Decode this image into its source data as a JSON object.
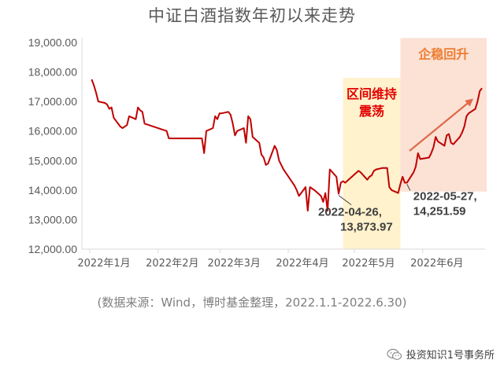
{
  "chart_data": {
    "type": "line",
    "title": "中证白酒指数年初以来走势",
    "ylim": [
      12000,
      19000
    ],
    "yticks": [
      "19,000.00",
      "18,000.00",
      "17,000.00",
      "16,000.00",
      "15,000.00",
      "14,000.00",
      "13,000.00",
      "12,000.00"
    ],
    "ytick_values": [
      19000,
      18000,
      17000,
      16000,
      15000,
      14000,
      13000,
      12000
    ],
    "xlim": [
      "2022-01-01",
      "2022-06-30"
    ],
    "xticks": [
      {
        "label": "2022年1月",
        "date": "2022-01-01"
      },
      {
        "label": "2022年2月",
        "date": "2022-02-01"
      },
      {
        "label": "2022年3月",
        "date": "2022-03-01"
      },
      {
        "label": "2022年4月",
        "date": "2022-04-01"
      },
      {
        "label": "2022年5月",
        "date": "2022-05-01"
      },
      {
        "label": "2022年6月",
        "date": "2022-06-01"
      }
    ],
    "grid": false,
    "line_color": "#C00000",
    "series": [
      {
        "points": [
          [
            "2022-01-04",
            17750
          ],
          [
            "2022-01-05",
            17550
          ],
          [
            "2022-01-06",
            17300
          ],
          [
            "2022-01-07",
            17000
          ],
          [
            "2022-01-10",
            16950
          ],
          [
            "2022-01-11",
            16900
          ],
          [
            "2022-01-12",
            16750
          ],
          [
            "2022-01-13",
            16800
          ],
          [
            "2022-01-14",
            16450
          ],
          [
            "2022-01-17",
            16150
          ],
          [
            "2022-01-18",
            16100
          ],
          [
            "2022-01-19",
            16150
          ],
          [
            "2022-01-20",
            16200
          ],
          [
            "2022-01-21",
            16500
          ],
          [
            "2022-01-24",
            16400
          ],
          [
            "2022-01-25",
            16800
          ],
          [
            "2022-01-26",
            16700
          ],
          [
            "2022-01-27",
            16650
          ],
          [
            "2022-01-28",
            16250
          ],
          [
            "2022-02-07",
            16000
          ],
          [
            "2022-02-08",
            15750
          ],
          [
            "2022-02-09",
            15750
          ],
          [
            "2022-02-10",
            15750
          ],
          [
            "2022-02-11",
            15750
          ],
          [
            "2022-02-14",
            15750
          ],
          [
            "2022-02-15",
            15750
          ],
          [
            "2022-02-16",
            15750
          ],
          [
            "2022-02-17",
            15750
          ],
          [
            "2022-02-18",
            15750
          ],
          [
            "2022-02-21",
            15750
          ],
          [
            "2022-02-22",
            15750
          ],
          [
            "2022-02-23",
            15750
          ],
          [
            "2022-02-24",
            15250
          ],
          [
            "2022-02-25",
            16000
          ],
          [
            "2022-02-28",
            16100
          ],
          [
            "2022-03-01",
            16500
          ],
          [
            "2022-03-02",
            16400
          ],
          [
            "2022-03-03",
            16600
          ],
          [
            "2022-03-04",
            16600
          ],
          [
            "2022-03-07",
            16650
          ],
          [
            "2022-03-08",
            16550
          ],
          [
            "2022-03-09",
            16250
          ],
          [
            "2022-03-10",
            15850
          ],
          [
            "2022-03-11",
            16000
          ],
          [
            "2022-03-14",
            16100
          ],
          [
            "2022-03-15",
            15600
          ],
          [
            "2022-03-16",
            16500
          ],
          [
            "2022-03-17",
            16400
          ],
          [
            "2022-03-18",
            15800
          ],
          [
            "2022-03-21",
            15600
          ],
          [
            "2022-03-22",
            15200
          ],
          [
            "2022-03-23",
            15100
          ],
          [
            "2022-03-24",
            14850
          ],
          [
            "2022-03-25",
            14900
          ],
          [
            "2022-03-28",
            15500
          ],
          [
            "2022-03-29",
            15350
          ],
          [
            "2022-03-30",
            15000
          ],
          [
            "2022-03-31",
            14850
          ],
          [
            "2022-04-01",
            14700
          ],
          [
            "2022-04-06",
            14150
          ],
          [
            "2022-04-07",
            14000
          ],
          [
            "2022-04-08",
            13800
          ],
          [
            "2022-04-11",
            14100
          ],
          [
            "2022-04-12",
            13300
          ],
          [
            "2022-04-13",
            14100
          ],
          [
            "2022-04-14",
            14050
          ],
          [
            "2022-04-15",
            14000
          ],
          [
            "2022-04-18",
            13800
          ],
          [
            "2022-04-19",
            13600
          ],
          [
            "2022-04-20",
            13900
          ],
          [
            "2022-04-21",
            13300
          ],
          [
            "2022-04-22",
            14700
          ],
          [
            "2022-04-25",
            14450
          ],
          [
            "2022-04-26",
            13874
          ],
          [
            "2022-04-27",
            14250
          ],
          [
            "2022-04-28",
            14300
          ],
          [
            "2022-04-29",
            14250
          ],
          [
            "2022-05-05",
            14650
          ],
          [
            "2022-05-06",
            14600
          ],
          [
            "2022-05-09",
            14350
          ],
          [
            "2022-05-10",
            14450
          ],
          [
            "2022-05-11",
            14500
          ],
          [
            "2022-05-12",
            14650
          ],
          [
            "2022-05-13",
            14700
          ],
          [
            "2022-05-16",
            14750
          ],
          [
            "2022-05-17",
            14750
          ],
          [
            "2022-05-18",
            14750
          ],
          [
            "2022-05-19",
            14100
          ],
          [
            "2022-05-20",
            14000
          ],
          [
            "2022-05-23",
            13900
          ],
          [
            "2022-05-24",
            14200
          ],
          [
            "2022-05-25",
            14450
          ],
          [
            "2022-05-26",
            14250
          ],
          [
            "2022-05-27",
            14252
          ],
          [
            "2022-05-30",
            14600
          ],
          [
            "2022-05-31",
            14800
          ],
          [
            "2022-06-01",
            15250
          ],
          [
            "2022-06-02",
            15050
          ],
          [
            "2022-06-06",
            15100
          ],
          [
            "2022-06-07",
            15250
          ],
          [
            "2022-06-08",
            15450
          ],
          [
            "2022-06-09",
            15800
          ],
          [
            "2022-06-10",
            15650
          ],
          [
            "2022-06-13",
            15500
          ],
          [
            "2022-06-14",
            15850
          ],
          [
            "2022-06-15",
            15900
          ],
          [
            "2022-06-16",
            15600
          ],
          [
            "2022-06-17",
            15550
          ],
          [
            "2022-06-20",
            15800
          ],
          [
            "2022-06-21",
            15950
          ],
          [
            "2022-06-22",
            16150
          ],
          [
            "2022-06-23",
            16500
          ],
          [
            "2022-06-24",
            16600
          ],
          [
            "2022-06-27",
            16750
          ],
          [
            "2022-06-28",
            17000
          ],
          [
            "2022-06-29",
            17350
          ],
          [
            "2022-06-30",
            17450
          ]
        ]
      }
    ],
    "annotations": [
      {
        "date": "2022-04-26",
        "value": 13873.97,
        "lines": [
          "2022-04-26,",
          "13,873.97"
        ]
      },
      {
        "date": "2022-05-27",
        "value": 14251.59,
        "lines": [
          "2022-05-27,",
          "14,251.59"
        ]
      }
    ],
    "regions": [
      {
        "label_lines": [
          "区间维持",
          "震荡"
        ],
        "x0": "2022-04-28",
        "x1": "2022-05-24",
        "y0": 12000,
        "y1": 17800,
        "fill": "#FFF2CC",
        "label_color": "#E30000"
      },
      {
        "label_lines": [
          "企稳回升"
        ],
        "x0": "2022-05-24",
        "x1": "2022-07-07",
        "y0": 13950,
        "y1": 19150,
        "fill": "#FBE2D5",
        "label_color": "#ED7D31"
      }
    ],
    "arrow_color": "#E0694A"
  },
  "source_note": "(数据来源：Wind，博时基金整理，2022.1.1-2022.6.30)",
  "watermark": {
    "text": "投资知识1号事务所",
    "icon": "wechat-icon"
  }
}
